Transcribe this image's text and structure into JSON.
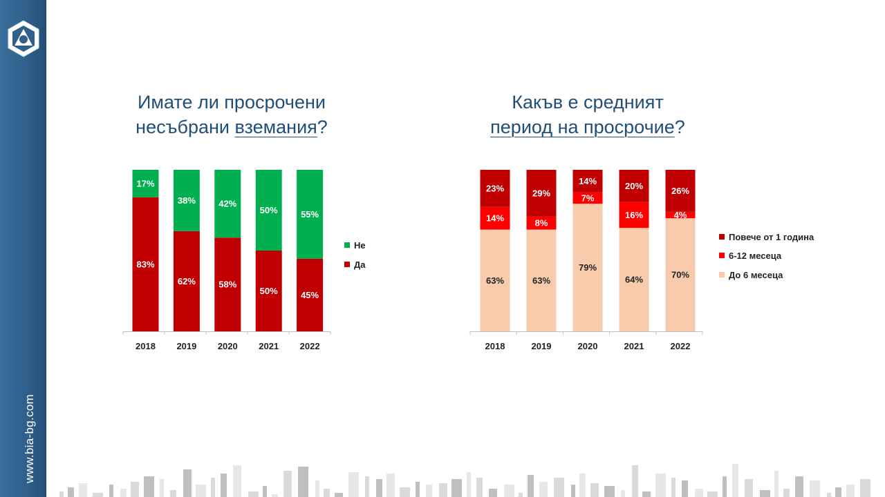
{
  "site_url": "www.bia-bg.com",
  "charts": {
    "left": {
      "title_line1": "Имате ли просрочени",
      "title_line2_pre": "несъбрани ",
      "title_line2_link": "вземания",
      "title_line2_post": "?"
    },
    "right": {
      "title_line1": "Какъв е средният",
      "title_line2_link": "период на просрочие",
      "title_line2_post": "?"
    }
  },
  "colors": {
    "dark_red": "#c00000",
    "green": "#00b050",
    "red": "#ff0000",
    "peach": "#f8cbad",
    "brand_blue": "#2f5f8a",
    "title_blue": "#1f4e79"
  },
  "chart_data": [
    {
      "type": "bar",
      "stacked": true,
      "title": "Имате ли просрочени несъбрани вземания?",
      "categories": [
        "2018",
        "2019",
        "2020",
        "2021",
        "2022"
      ],
      "series": [
        {
          "name": "Да",
          "values": [
            83,
            62,
            58,
            50,
            45
          ],
          "labels": [
            "83%",
            "62%",
            "58%",
            "50%",
            "45%"
          ],
          "color": "#c00000"
        },
        {
          "name": "Не",
          "values": [
            17,
            38,
            42,
            50,
            55
          ],
          "labels": [
            "17%",
            "38%",
            "42%",
            "50%",
            "55%"
          ],
          "color": "#00b050"
        }
      ],
      "legend": [
        "Не",
        "Да"
      ],
      "legend_position": "right"
    },
    {
      "type": "bar",
      "stacked": true,
      "title": "Какъв е средният период на просрочие?",
      "categories": [
        "2018",
        "2019",
        "2020",
        "2021",
        "2022"
      ],
      "series": [
        {
          "name": "До 6 месеца",
          "values": [
            63,
            63,
            79,
            64,
            70
          ],
          "labels": [
            "63%",
            "63%",
            "79%",
            "64%",
            "70%"
          ],
          "color": "#f8cbad"
        },
        {
          "name": "6-12 месеца",
          "values": [
            14,
            8,
            7,
            16,
            4
          ],
          "labels": [
            "14%",
            "8%",
            "7%",
            "16%",
            "4%"
          ],
          "color": "#ff0000"
        },
        {
          "name": "Повече от 1 година",
          "values": [
            23,
            29,
            14,
            20,
            26
          ],
          "labels": [
            "23%",
            "29%",
            "14%",
            "20%",
            "26%"
          ],
          "color": "#c00000"
        }
      ],
      "legend": [
        "Повече от 1 година",
        "6-12 месеца",
        "До 6 месеца"
      ],
      "legend_position": "right"
    }
  ]
}
